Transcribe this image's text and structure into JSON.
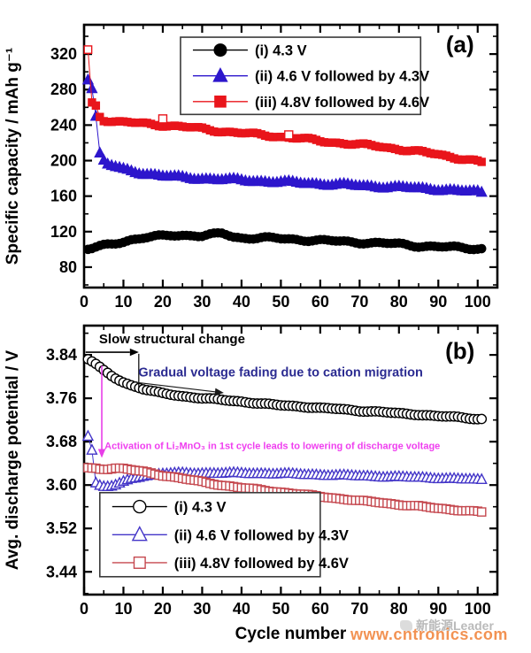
{
  "figure": {
    "watermark": {
      "brand": "新能源Leader",
      "url": "www.cntronics.com",
      "brand_color": "#a9a9a9",
      "url_color": "#f07f35"
    }
  },
  "chart_data": [
    {
      "id": "a",
      "type": "scatter",
      "panel_label": "(a)",
      "panel_label_pos": {
        "x": 95.5,
        "y": 322
      },
      "title": "",
      "xlabel": "",
      "ylabel": "Specific capacity / mAh g⁻¹",
      "xlim": [
        0,
        105
      ],
      "ylim": [
        57,
        353
      ],
      "xticks": [
        0,
        10,
        20,
        30,
        40,
        50,
        60,
        70,
        80,
        90,
        100
      ],
      "xtick_labels": [
        "0",
        "10",
        "20",
        "30",
        "40",
        "50",
        "60",
        "70",
        "80",
        "90",
        "100"
      ],
      "yticks": [
        80,
        120,
        160,
        200,
        240,
        280,
        320
      ],
      "ytick_labels": [
        "80",
        "120",
        "160",
        "200",
        "240",
        "280",
        "320"
      ],
      "minor_x_step": 5,
      "minor_y_step": 20,
      "grid": false,
      "legend": {
        "position": "top-center",
        "box": {
          "x1": 24.5,
          "y1": 252,
          "x2": 85.5,
          "y2": 339
        },
        "entries": [
          {
            "label": "(i) 4.3 V",
            "color": "#000000",
            "marker": "circle",
            "open": false
          },
          {
            "label": "(ii) 4.6 V followed by 4.3V",
            "color": "#2d16cc",
            "marker": "triangle",
            "open": false
          },
          {
            "label": "(iii) 4.8V followed by 4.6V",
            "color": "#e9151b",
            "marker": "square",
            "open": false
          }
        ]
      },
      "series": [
        {
          "name": "(i) 4.3 V",
          "color": "#000000",
          "marker": "circle",
          "open": false,
          "size": 4.8,
          "x": [
            1,
            2,
            3,
            4,
            5,
            6,
            8,
            10,
            12,
            15,
            18,
            20,
            22,
            25,
            28,
            30,
            32,
            35,
            36,
            38,
            40,
            45,
            50,
            55,
            60,
            65,
            70,
            75,
            80,
            85,
            90,
            95,
            100,
            101
          ],
          "y": [
            100,
            101,
            102,
            103,
            104,
            105,
            107,
            109,
            111,
            113,
            114,
            115,
            116,
            116,
            116,
            115,
            116,
            118,
            117,
            114,
            113,
            113,
            112,
            111,
            110,
            109,
            108,
            107,
            106,
            104,
            103,
            102,
            101,
            101
          ]
        },
        {
          "name": "(ii) 4.6 V followed by 4.3V",
          "color": "#2d16cc",
          "marker": "triangle",
          "open": false,
          "size": 5.5,
          "x": [
            1,
            2,
            3,
            4,
            5,
            6,
            8,
            10,
            15,
            20,
            25,
            30,
            35,
            40,
            45,
            50,
            55,
            60,
            65,
            70,
            75,
            80,
            85,
            90,
            95,
            100,
            101
          ],
          "y": [
            291,
            282,
            250,
            208,
            200,
            196,
            193,
            190,
            186,
            183,
            181,
            180,
            179,
            178,
            177,
            176,
            175,
            174,
            173,
            172,
            171,
            170,
            169,
            168,
            166,
            165,
            164
          ]
        },
        {
          "name": "(iii) 4.8V followed by 4.6V",
          "color": "#e9151b",
          "marker": "square",
          "open": false,
          "first_open": true,
          "size": 4.2,
          "x": [
            1,
            2,
            3,
            4,
            5,
            8,
            10,
            15,
            20,
            25,
            30,
            35,
            40,
            45,
            50,
            55,
            60,
            65,
            70,
            75,
            80,
            85,
            90,
            95,
            100,
            101
          ],
          "y": [
            325,
            265,
            262,
            250,
            246,
            244,
            243,
            242,
            240,
            238,
            236,
            233,
            231,
            229,
            227,
            225,
            222,
            220,
            218,
            216,
            213,
            210,
            207,
            203,
            199,
            198
          ]
        }
      ],
      "extra_points": [
        {
          "x": 20,
          "y": 247,
          "marker": "square",
          "open": true,
          "color": "#e9151b",
          "size": 4.5
        },
        {
          "x": 52,
          "y": 229,
          "marker": "square",
          "open": true,
          "color": "#e9151b",
          "size": 4.5
        }
      ],
      "annotations": []
    },
    {
      "id": "b",
      "type": "scatter",
      "panel_label": "(b)",
      "panel_label_pos": {
        "x": 95.5,
        "y": 3.833
      },
      "title": "",
      "xlabel": "Cycle number",
      "ylabel": "Avg. discharge potential / V",
      "xlim": [
        0,
        105
      ],
      "ylim": [
        3.398,
        3.894
      ],
      "xticks": [
        0,
        10,
        20,
        30,
        40,
        50,
        60,
        70,
        80,
        90,
        100
      ],
      "xtick_labels": [
        "0",
        "10",
        "20",
        "30",
        "40",
        "50",
        "60",
        "70",
        "80",
        "90",
        "100"
      ],
      "yticks": [
        3.44,
        3.52,
        3.6,
        3.68,
        3.76,
        3.84
      ],
      "ytick_labels": [
        "3.44",
        "3.52",
        "3.60",
        "3.68",
        "3.76",
        "3.84"
      ],
      "minor_x_step": 5,
      "minor_y_step": 0.04,
      "grid": false,
      "legend": {
        "position": "bottom-left",
        "box": {
          "x1": 4.0,
          "y1": 3.431,
          "x2": 60.0,
          "y2": 3.586
        },
        "entries": [
          {
            "label": "(i) 4.3 V",
            "color": "#000000",
            "marker": "circle",
            "open": true
          },
          {
            "label": "(ii) 4.6 V followed by 4.3V",
            "color": "#4335c8",
            "marker": "triangle",
            "open": true
          },
          {
            "label": "(iii) 4.8V followed by 4.6V",
            "color": "#c5484f",
            "marker": "square",
            "open": true
          }
        ]
      },
      "series": [
        {
          "name": "(i) 4.3 V",
          "color": "#000000",
          "marker": "circle",
          "open": true,
          "size": 5.2,
          "x": [
            1,
            2,
            3,
            4,
            5,
            6,
            7,
            8,
            10,
            12,
            15,
            18,
            20,
            25,
            30,
            35,
            40,
            45,
            50,
            55,
            60,
            65,
            70,
            75,
            80,
            85,
            90,
            95,
            100,
            101
          ],
          "y": [
            3.832,
            3.828,
            3.823,
            3.817,
            3.811,
            3.806,
            3.801,
            3.797,
            3.79,
            3.784,
            3.777,
            3.772,
            3.769,
            3.764,
            3.76,
            3.757,
            3.754,
            3.75,
            3.747,
            3.745,
            3.742,
            3.74,
            3.737,
            3.735,
            3.732,
            3.73,
            3.727,
            3.725,
            3.722,
            3.722
          ]
        },
        {
          "name": "(ii) 4.6 V followed by 4.3V",
          "color": "#4335c8",
          "marker": "triangle",
          "open": true,
          "size": 5.2,
          "x": [
            1,
            2,
            3,
            4,
            5,
            6,
            7,
            8,
            9,
            10,
            12,
            15,
            20,
            25,
            30,
            40,
            50,
            60,
            70,
            80,
            90,
            100,
            101
          ],
          "y": [
            3.69,
            3.665,
            3.604,
            3.599,
            3.597,
            3.597,
            3.598,
            3.6,
            3.603,
            3.606,
            3.612,
            3.617,
            3.621,
            3.622,
            3.622,
            3.622,
            3.621,
            3.619,
            3.617,
            3.615,
            3.613,
            3.61,
            3.61
          ]
        },
        {
          "name": "(iii) 4.8V followed by 4.6V",
          "color": "#c5484f",
          "marker": "square",
          "open": true,
          "size": 4.6,
          "x": [
            1,
            2,
            3,
            4,
            5,
            6,
            8,
            10,
            12,
            15,
            20,
            25,
            30,
            35,
            40,
            45,
            50,
            55,
            60,
            65,
            70,
            75,
            80,
            85,
            90,
            95,
            100,
            101
          ],
          "y": [
            3.632,
            3.631,
            3.631,
            3.63,
            3.63,
            3.63,
            3.631,
            3.63,
            3.628,
            3.625,
            3.618,
            3.612,
            3.606,
            3.6,
            3.595,
            3.591,
            3.587,
            3.583,
            3.579,
            3.575,
            3.571,
            3.568,
            3.564,
            3.561,
            3.557,
            3.554,
            3.551,
            3.55
          ]
        }
      ],
      "extra_points": [],
      "annotations": [
        {
          "type": "text",
          "text": "Slow structural change",
          "color": "#000000",
          "x": 3.8,
          "y": 3.861,
          "size": 15
        },
        {
          "type": "arrow",
          "x1": 0.4,
          "y1": 3.845,
          "x2": 13.9,
          "y2": 3.845,
          "color": "#000000",
          "width": 1.6
        },
        {
          "type": "line",
          "x1": 13.9,
          "y1": 3.842,
          "x2": 13.9,
          "y2": 3.78,
          "color": "#000000",
          "width": 1.2
        },
        {
          "type": "text",
          "text": "Gradual voltage fading due to cation migration",
          "color": "#2b2b91",
          "x": 13.8,
          "y": 3.8,
          "size": 14.5
        },
        {
          "type": "arrow",
          "x1": 13.5,
          "y1": 3.789,
          "x2": 35.5,
          "y2": 3.77,
          "color": "#1a1a1a",
          "width": 1.1
        },
        {
          "type": "arrow",
          "x1": 4.5,
          "y1": 3.82,
          "x2": 4.5,
          "y2": 3.65,
          "color": "#e83ee8",
          "width": 1.6
        },
        {
          "type": "text",
          "text": "Activation of Li₂MnO₃ in 1st cycle leads to lowering of discharge voltage",
          "color": "#ef3eef",
          "x": 5.2,
          "y": 3.666,
          "size": 11
        }
      ]
    }
  ]
}
